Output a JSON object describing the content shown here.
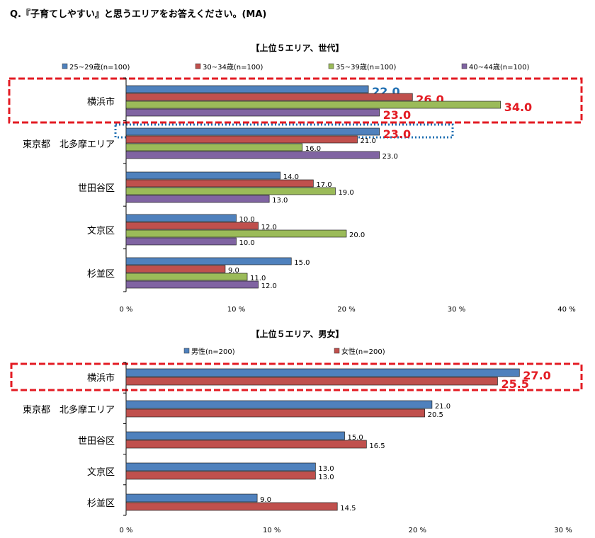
{
  "question": "Q.『子育てしやすい』と思うエリアをお答えください。(MA)",
  "chart_data": [
    {
      "type": "bar",
      "orientation": "horizontal",
      "title": "【上位５エリア、世代】",
      "categories": [
        "横浜市",
        "東京都　北多摩エリア",
        "世田谷区",
        "文京区",
        "杉並区"
      ],
      "series": [
        {
          "name": "25~29歳(n=100)",
          "color": "#4f81bd",
          "values": [
            22.0,
            23.0,
            14.0,
            10.0,
            15.0
          ]
        },
        {
          "name": "30~34歳(n=100)",
          "color": "#c0504d",
          "values": [
            26.0,
            21.0,
            17.0,
            12.0,
            9.0
          ]
        },
        {
          "name": "35~39歳(n=100)",
          "color": "#9bbb59",
          "values": [
            34.0,
            16.0,
            19.0,
            20.0,
            11.0
          ]
        },
        {
          "name": "40~44歳(n=100)",
          "color": "#8064a2",
          "values": [
            23.0,
            23.0,
            13.0,
            10.0,
            12.0
          ]
        }
      ],
      "xlim": [
        0,
        40
      ],
      "x_ticks": [
        "0 %",
        "10 %",
        "20 %",
        "30 %",
        "40 %"
      ],
      "legend": "top",
      "grid": false,
      "highlight_color_red": "#e31b23",
      "highlight_color_blue": "#1f6fb2"
    },
    {
      "type": "bar",
      "orientation": "horizontal",
      "title": "【上位５エリア、男女】",
      "categories": [
        "横浜市",
        "東京都　北多摩エリア",
        "世田谷区",
        "文京区",
        "杉並区"
      ],
      "series": [
        {
          "name": "男性(n=200)",
          "color": "#4f81bd",
          "values": [
            27.0,
            21.0,
            15.0,
            13.0,
            9.0
          ]
        },
        {
          "name": "女性(n=200)",
          "color": "#c0504d",
          "values": [
            25.5,
            20.5,
            16.5,
            13.0,
            14.5
          ]
        }
      ],
      "xlim": [
        0,
        30
      ],
      "x_ticks": [
        "0 %",
        "10 %",
        "20 %",
        "30 %"
      ],
      "legend": "top",
      "grid": false,
      "highlight_color_red": "#e31b23"
    }
  ]
}
